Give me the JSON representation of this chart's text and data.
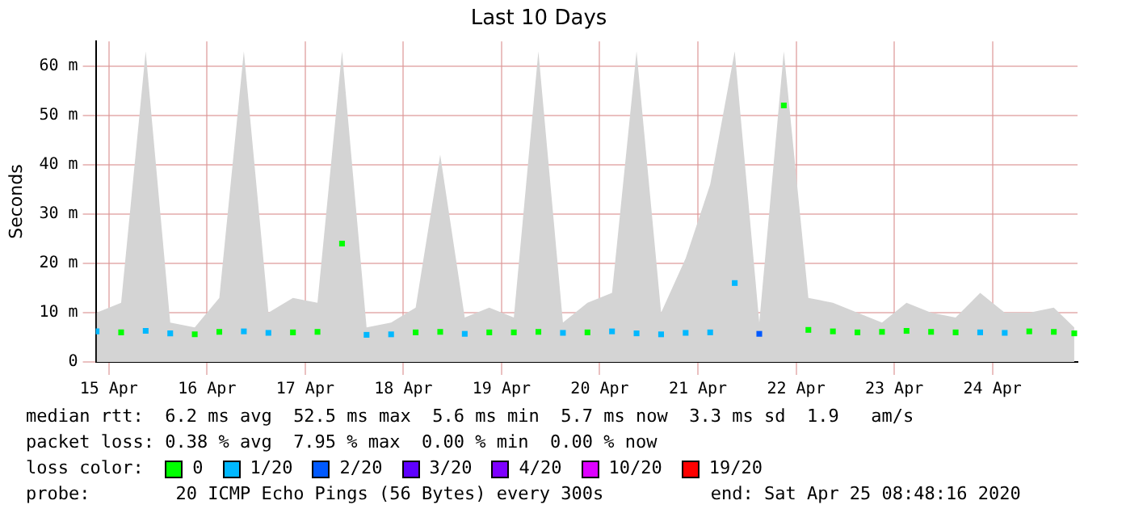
{
  "chart_data": {
    "type": "scatter",
    "title": "Last 10 Days",
    "ylabel": "Seconds",
    "legend_title": "loss color:",
    "legend": "bottom",
    "grid": true,
    "marker": "square",
    "x": [
      "2020-04-15T09:00",
      "2020-04-15T15:00",
      "2020-04-15T21:00",
      "2020-04-16T03:00",
      "2020-04-16T09:00",
      "2020-04-16T15:00",
      "2020-04-16T21:00",
      "2020-04-17T03:00",
      "2020-04-17T09:00",
      "2020-04-17T15:00",
      "2020-04-17T21:00",
      "2020-04-18T03:00",
      "2020-04-18T09:00",
      "2020-04-18T15:00",
      "2020-04-18T21:00",
      "2020-04-19T03:00",
      "2020-04-19T09:00",
      "2020-04-19T15:00",
      "2020-04-19T21:00",
      "2020-04-20T03:00",
      "2020-04-20T09:00",
      "2020-04-20T15:00",
      "2020-04-20T21:00",
      "2020-04-21T03:00",
      "2020-04-21T09:00",
      "2020-04-21T15:00",
      "2020-04-21T21:00",
      "2020-04-22T03:00",
      "2020-04-22T09:00",
      "2020-04-22T15:00",
      "2020-04-22T21:00",
      "2020-04-23T03:00",
      "2020-04-23T09:00",
      "2020-04-23T15:00",
      "2020-04-23T21:00",
      "2020-04-24T03:00",
      "2020-04-24T09:00",
      "2020-04-24T15:00",
      "2020-04-24T21:00",
      "2020-04-25T03:00",
      "2020-04-25T08:00"
    ],
    "xlim": [
      "2020-04-15T08:48",
      "2020-04-25T08:48"
    ],
    "xticks": [
      {
        "value": "2020-04-15T12:00",
        "label": "15 Apr"
      },
      {
        "value": "2020-04-16T12:00",
        "label": "16 Apr"
      },
      {
        "value": "2020-04-17T12:00",
        "label": "17 Apr"
      },
      {
        "value": "2020-04-18T12:00",
        "label": "18 Apr"
      },
      {
        "value": "2020-04-19T12:00",
        "label": "19 Apr"
      },
      {
        "value": "2020-04-20T12:00",
        "label": "20 Apr"
      },
      {
        "value": "2020-04-21T12:00",
        "label": "21 Apr"
      },
      {
        "value": "2020-04-22T12:00",
        "label": "22 Apr"
      },
      {
        "value": "2020-04-23T12:00",
        "label": "23 Apr"
      },
      {
        "value": "2020-04-24T12:00",
        "label": "24 Apr"
      }
    ],
    "ylim": [
      0,
      65
    ],
    "yticks": [
      0,
      {
        "value": 10,
        "label": "10 m"
      },
      {
        "value": 20,
        "label": "20 m"
      },
      {
        "value": 30,
        "label": "30 m"
      },
      {
        "value": 40,
        "label": "40 m"
      },
      {
        "value": 50,
        "label": "50 m"
      },
      {
        "value": 60,
        "label": "60 m"
      }
    ],
    "series": [
      {
        "type": "area",
        "marker": "none",
        "color": "#d4d4d4",
        "values": [
          10,
          12,
          63,
          8,
          7,
          13,
          63,
          10,
          13,
          12,
          63,
          7,
          8,
          11,
          42,
          9,
          11,
          9,
          63,
          8,
          12,
          14,
          63,
          10,
          21,
          36,
          63,
          8,
          63,
          13,
          12,
          10,
          8,
          12,
          10,
          9,
          14,
          10,
          10,
          11,
          7
        ]
      },
      {
        "name": "0",
        "color": "#00ff00",
        "values": [
          null,
          6.0,
          null,
          null,
          5.6,
          6.1,
          null,
          null,
          6.0,
          6.1,
          24,
          null,
          null,
          6.0,
          6.1,
          null,
          6.0,
          6.0,
          6.1,
          null,
          6.0,
          null,
          null,
          null,
          null,
          null,
          null,
          null,
          52,
          6.5,
          6.2,
          6.0,
          6.1,
          6.3,
          6.1,
          6.0,
          null,
          null,
          6.2,
          6.1,
          5.8
        ]
      },
      {
        "name": "1/20",
        "color": "#00b8ff",
        "values": [
          6.2,
          null,
          6.3,
          5.8,
          null,
          null,
          6.2,
          5.9,
          null,
          null,
          null,
          5.5,
          5.6,
          null,
          null,
          5.7,
          null,
          null,
          null,
          5.9,
          null,
          6.2,
          5.8,
          5.6,
          5.9,
          6.0,
          16,
          null,
          null,
          null,
          null,
          null,
          null,
          null,
          null,
          null,
          6.0,
          5.9,
          null,
          null,
          null
        ]
      },
      {
        "name": "2/20",
        "color": "#0059ff",
        "values": [
          null,
          null,
          null,
          null,
          null,
          null,
          null,
          null,
          null,
          null,
          null,
          null,
          null,
          null,
          null,
          null,
          null,
          null,
          null,
          null,
          null,
          null,
          null,
          null,
          null,
          null,
          null,
          5.7,
          null,
          null,
          null,
          null,
          null,
          null,
          null,
          null,
          null,
          null,
          null,
          null,
          null
        ]
      },
      {
        "name": "3/20",
        "color": "#5e00ff",
        "values": [
          null,
          null,
          null,
          null,
          null,
          null,
          null,
          null,
          null,
          null,
          null,
          null,
          null,
          null,
          null,
          null,
          null,
          null,
          null,
          null,
          null,
          null,
          null,
          null,
          null,
          null,
          null,
          null,
          null,
          null,
          null,
          null,
          null,
          null,
          null,
          null,
          null,
          null,
          null,
          null,
          null
        ]
      },
      {
        "name": "4/20",
        "color": "#7e00ff",
        "values": [
          null,
          null,
          null,
          null,
          null,
          null,
          null,
          null,
          null,
          null,
          null,
          null,
          null,
          null,
          null,
          null,
          null,
          null,
          null,
          null,
          null,
          null,
          null,
          null,
          null,
          null,
          null,
          null,
          null,
          null,
          null,
          null,
          null,
          null,
          null,
          null,
          null,
          null,
          null,
          null,
          null
        ]
      },
      {
        "name": "10/20",
        "color": "#dd00ff",
        "values": [
          null,
          null,
          null,
          null,
          null,
          null,
          null,
          null,
          null,
          null,
          null,
          null,
          null,
          null,
          null,
          null,
          null,
          null,
          null,
          null,
          null,
          null,
          null,
          null,
          null,
          null,
          null,
          null,
          null,
          null,
          null,
          null,
          null,
          null,
          null,
          null,
          null,
          null,
          null,
          null,
          null
        ]
      },
      {
        "name": "19/20",
        "color": "#ff0000",
        "values": [
          null,
          null,
          null,
          null,
          null,
          null,
          null,
          null,
          null,
          null,
          null,
          null,
          null,
          null,
          null,
          null,
          null,
          null,
          null,
          null,
          null,
          null,
          null,
          null,
          null,
          null,
          null,
          null,
          null,
          null,
          null,
          null,
          null,
          null,
          null,
          null,
          null,
          null,
          null,
          null,
          null
        ]
      }
    ],
    "annotations": [
      "median rtt:  6.2 ms avg  52.5 ms max  5.6 ms min  5.7 ms now  3.3 ms sd  1.9   am/s",
      "packet loss: 0.38 % avg  7.95 % max  0.00 % min  0.00 % now",
      "probe:        20 ICMP Echo Pings (56 Bytes) every 300s          end: Sat Apr 25 08:48:16 2020"
    ]
  }
}
